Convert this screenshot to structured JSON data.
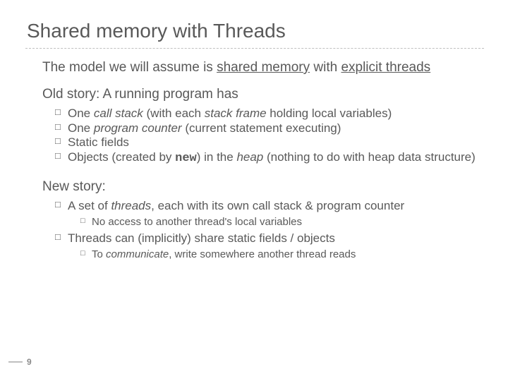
{
  "title": "Shared memory with Threads",
  "intro": {
    "pre": "The model we will assume is ",
    "u1": "shared memory",
    "mid": " with ",
    "u2": "explicit threads"
  },
  "old": {
    "heading": "Old story: A running program has",
    "items": [
      {
        "pre": "One ",
        "i1": "call stack",
        "mid1": " (with each ",
        "i2": "stack frame",
        "mid2": " holding local variables)"
      },
      {
        "pre": "One ",
        "i1": "program counter",
        "mid1": " (current statement executing)"
      },
      {
        "pre": "Static fields"
      },
      {
        "pre": "Objects (created by ",
        "mono": "new",
        "mid1": ") in the ",
        "i1": "heap",
        "mid2": " (nothing to do with heap data structure)"
      }
    ]
  },
  "newstory": {
    "heading": "New story:",
    "items": [
      {
        "pre": "A set of ",
        "i1": "threads",
        "mid1": ", each with its own call stack & program counter",
        "sub": {
          "pre": "No access to another thread's local variables"
        }
      },
      {
        "pre": "Threads can (implicitly) share static fields / objects",
        "sub": {
          "pre": "To ",
          "i1": "communicate",
          "mid1": ", write somewhere another thread reads"
        }
      }
    ]
  },
  "page": "9"
}
